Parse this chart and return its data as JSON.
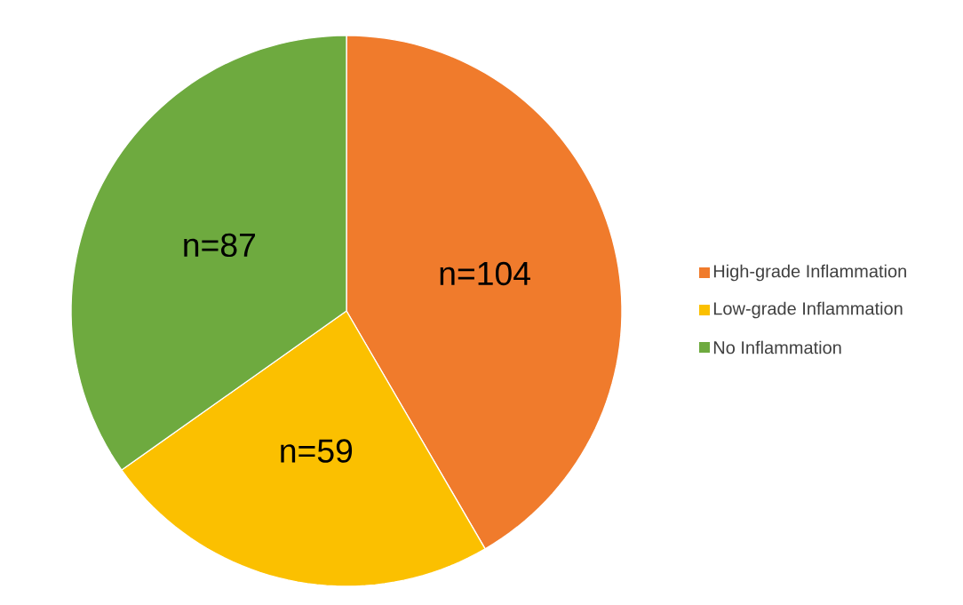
{
  "chart_data": {
    "type": "pie",
    "categories": [
      "High-grade Inflammation",
      "Low-grade Inflammation",
      "No Inflammation"
    ],
    "values": [
      104,
      59,
      87
    ],
    "colors": [
      "#f07b2c",
      "#fbc000",
      "#6eaa3f"
    ],
    "value_labels": [
      "n=104",
      "n=59",
      "n=87"
    ],
    "legend": "right"
  }
}
